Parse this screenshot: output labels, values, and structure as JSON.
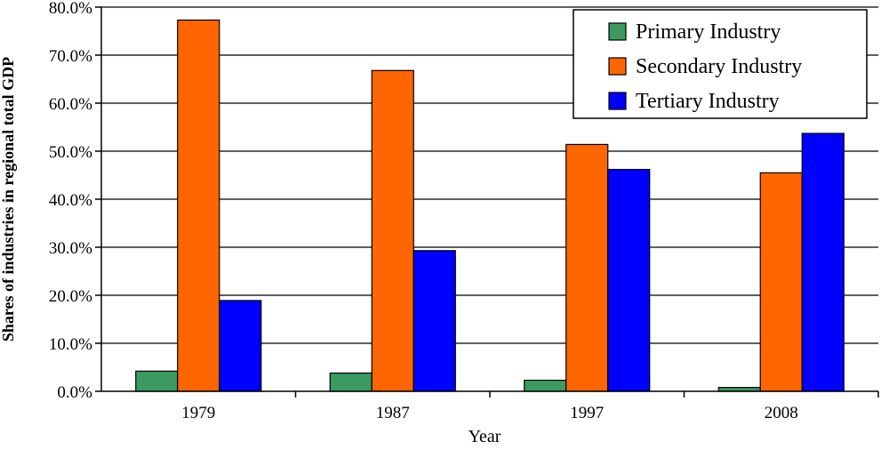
{
  "chart_data": {
    "type": "bar",
    "title": "",
    "xlabel": "Year",
    "ylabel": "Shares of industries in regional total GDP",
    "categories": [
      "1979",
      "1987",
      "1997",
      "2008"
    ],
    "ylim": [
      0,
      0.8
    ],
    "yticks": [
      "0.0%",
      "10.0%",
      "20.0%",
      "30.0%",
      "40.0%",
      "50.0%",
      "60.0%",
      "70.0%",
      "80.0%"
    ],
    "grid": true,
    "legend_position": "top-right",
    "series": [
      {
        "name": "Primary Industry",
        "color": "#3a9a62",
        "values": [
          0.042,
          0.038,
          0.023,
          0.008
        ]
      },
      {
        "name": "Secondary Industry",
        "color": "#ff6600",
        "values": [
          0.773,
          0.668,
          0.514,
          0.455
        ]
      },
      {
        "name": "Tertiary Industry",
        "color": "#0000ff",
        "values": [
          0.189,
          0.293,
          0.462,
          0.537
        ]
      }
    ]
  }
}
